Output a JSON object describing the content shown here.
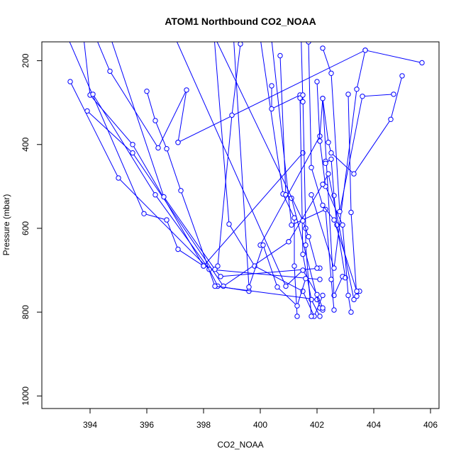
{
  "chart_data": {
    "type": "line",
    "title": "ATOM1 Northbound CO2_NOAA",
    "xlabel": "CO2_NOAA",
    "ylabel": "Pressure (mbar)",
    "xlim": [
      392.3,
      406.3
    ],
    "ylim": [
      1030,
      155
    ],
    "y_reversed": true,
    "grid": false,
    "line_color": "#0000ff",
    "x_ticks": [
      394,
      396,
      398,
      400,
      402,
      404,
      406
    ],
    "y_ticks": [
      200,
      400,
      600,
      800,
      1000
    ],
    "series": [
      {
        "x": [
          392.8,
          395.9,
          396.7,
          397.1,
          398.0,
          401.5
        ],
        "y": [
          80,
          565,
          580,
          650,
          690,
          420
        ]
      },
      {
        "x": [
          393.3,
          395.0,
          398.2,
          398.5,
          399.6
        ],
        "y": [
          250,
          480,
          698,
          738,
          750
        ]
      },
      {
        "x": [
          393.6,
          394.0,
          395.5,
          398.0
        ],
        "y": [
          40,
          282,
          400,
          690
        ]
      },
      {
        "x": [
          394.1,
          396.3,
          398.2,
          402.1
        ],
        "y": [
          280,
          520,
          698,
          722
        ]
      },
      {
        "x": [
          393.9,
          395.5,
          398.7,
          401.0
        ],
        "y": [
          320,
          420,
          738,
          632
        ]
      },
      {
        "x": [
          393.8,
          394.7,
          396.4,
          397.4,
          397.1
        ],
        "y": [
          80,
          225,
          408,
          270,
          395
        ]
      },
      {
        "x": [
          394.5,
          396.6,
          398.4,
          398.6,
          402.1
        ],
        "y": [
          100,
          525,
          698,
          715,
          695
        ]
      },
      {
        "x": [
          396.0,
          396.3,
          396.7,
          397.2,
          398.4,
          402.0
        ],
        "y": [
          273,
          343,
          410,
          510,
          738,
          770
        ]
      },
      {
        "x": [
          397.1,
          403.7
        ],
        "y": [
          395,
          175
        ]
      },
      {
        "x": [
          399.3,
          399.0,
          398.5
        ],
        "y": [
          160,
          330,
          690
        ]
      },
      {
        "x": [
          399.9,
          400.8,
          401.2,
          401.2,
          401.3
        ],
        "y": [
          100,
          518,
          575,
          690,
          810
        ]
      },
      {
        "x": [
          398.3,
          398.9,
          399.8,
          401.5,
          401.9,
          402.2
        ],
        "y": [
          80,
          590,
          690,
          750,
          810,
          760
        ]
      },
      {
        "x": [
          400.4,
          400.4,
          401.4,
          401.4,
          401.5,
          401.8,
          402.1
        ],
        "y": [
          260,
          315,
          282,
          289,
          662,
          770,
          810
        ]
      },
      {
        "x": [
          400.7,
          400.9,
          401.1,
          402.1,
          402.2
        ],
        "y": [
          188,
          520,
          528,
          790,
          795
        ]
      },
      {
        "x": [
          400.0,
          402.1,
          402.2,
          402.6,
          402.9
        ],
        "y": [
          640,
          380,
          290,
          760,
          715
        ]
      },
      {
        "x": [
          401.4,
          401.5,
          401.5,
          401.6,
          401.6,
          401.8
        ],
        "y": [
          40,
          298,
          282,
          600,
          640,
          810
        ]
      },
      {
        "x": [
          402.3,
          402.3,
          402.5,
          402.6,
          402.7,
          403.0
        ],
        "y": [
          440,
          445,
          435,
          522,
          592,
          718
        ]
      },
      {
        "x": [
          403.1,
          403.2,
          403.4,
          403.5
        ],
        "y": [
          280,
          562,
          762,
          750
        ]
      },
      {
        "x": [
          402.2,
          402.4,
          402.5,
          403.3,
          404.6,
          405.0
        ],
        "y": [
          290,
          395,
          420,
          470,
          340,
          236
        ]
      },
      {
        "x": [
          401.8,
          402.6,
          403.4,
          403.7,
          405.7
        ],
        "y": [
          520,
          695,
          268,
          175,
          205
        ]
      },
      {
        "x": [
          402.0,
          402.1,
          402.3,
          402.9,
          403.1,
          403.2
        ],
        "y": [
          250,
          392,
          500,
          592,
          760,
          800
        ]
      },
      {
        "x": [
          400.4,
          401.1,
          402.3,
          402.5,
          402.6
        ],
        "y": [
          150,
          592,
          555,
          722,
          795
        ]
      },
      {
        "x": [
          401.0,
          402.2,
          402.4,
          403.3
        ],
        "y": [
          632,
          495,
          470,
          770
        ]
      },
      {
        "x": [
          401.7,
          401.8,
          402.2,
          402.6,
          403.4
        ],
        "y": [
          155,
          455,
          545,
          580,
          750
        ]
      },
      {
        "x": [
          397.8,
          401.5,
          401.7,
          402.0
        ],
        "y": [
          60,
          582,
          620,
          695
        ]
      },
      {
        "x": [
          396.7,
          400.9,
          401.5,
          402.0,
          402.2
        ],
        "y": [
          100,
          738,
          700,
          758,
          790
        ]
      },
      {
        "x": [
          399.0,
          399.6,
          400.1,
          400.6,
          401.3,
          401.6
        ],
        "y": [
          80,
          740,
          640,
          740,
          785,
          720
        ]
      },
      {
        "x": [
          402.2,
          402.5,
          402.8,
          403.6,
          404.7
        ],
        "y": [
          170,
          230,
          560,
          285,
          280
        ]
      }
    ]
  }
}
